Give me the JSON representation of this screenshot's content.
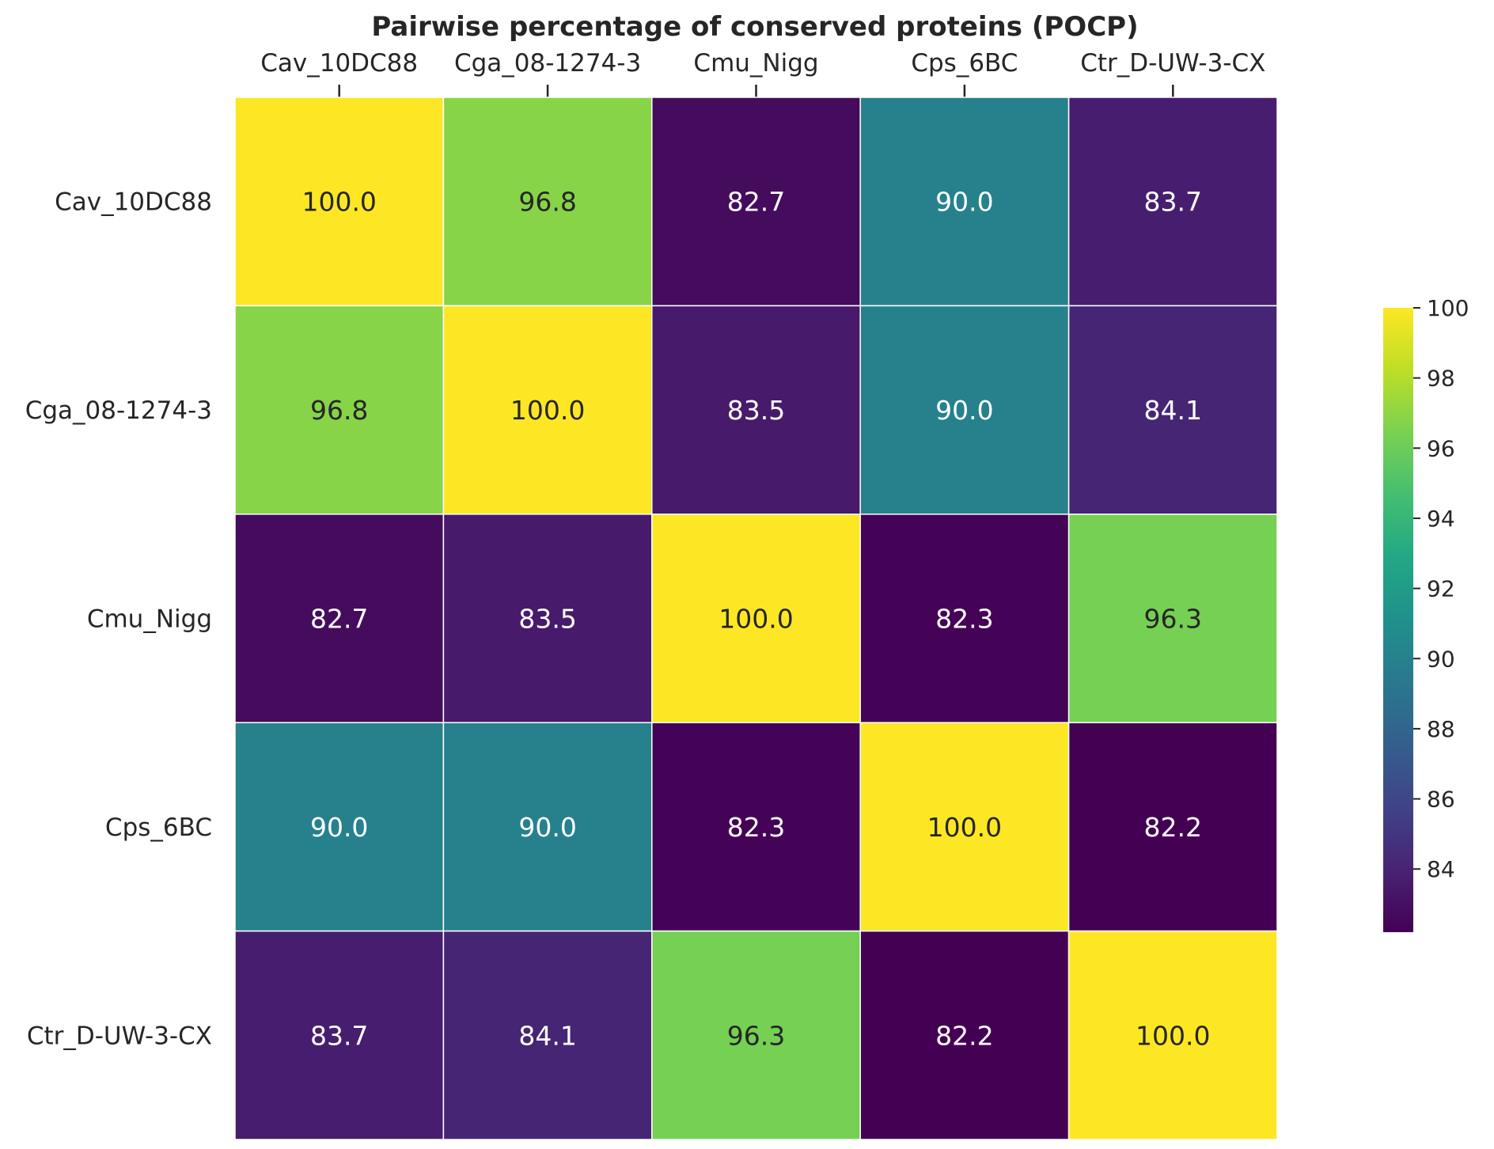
{
  "chart_data": {
    "type": "heatmap",
    "title": "Pairwise percentage of conserved proteins (POCP)",
    "x_categories": [
      "Cav_10DC88",
      "Cga_08-1274-3",
      "Cmu_Nigg",
      "Cps_6BC",
      "Ctr_D-UW-3-CX"
    ],
    "y_categories": [
      "Cav_10DC88",
      "Cga_08-1274-3",
      "Cmu_Nigg",
      "Cps_6BC",
      "Ctr_D-UW-3-CX"
    ],
    "values": [
      [
        100.0,
        96.8,
        82.7,
        90.0,
        83.7
      ],
      [
        96.8,
        100.0,
        83.5,
        90.0,
        84.1
      ],
      [
        82.7,
        83.5,
        100.0,
        82.3,
        96.3
      ],
      [
        90.0,
        90.0,
        82.3,
        100.0,
        82.2
      ],
      [
        83.7,
        84.1,
        96.3,
        82.2,
        100.0
      ]
    ],
    "value_format": "0.0",
    "x_axis_position": "top",
    "colormap": "viridis",
    "colorbar": {
      "range": [
        82.2,
        100.0
      ],
      "ticks": [
        84,
        86,
        88,
        90,
        92,
        94,
        96,
        98,
        100
      ],
      "position": "right"
    },
    "xlabel": "",
    "ylabel": ""
  }
}
